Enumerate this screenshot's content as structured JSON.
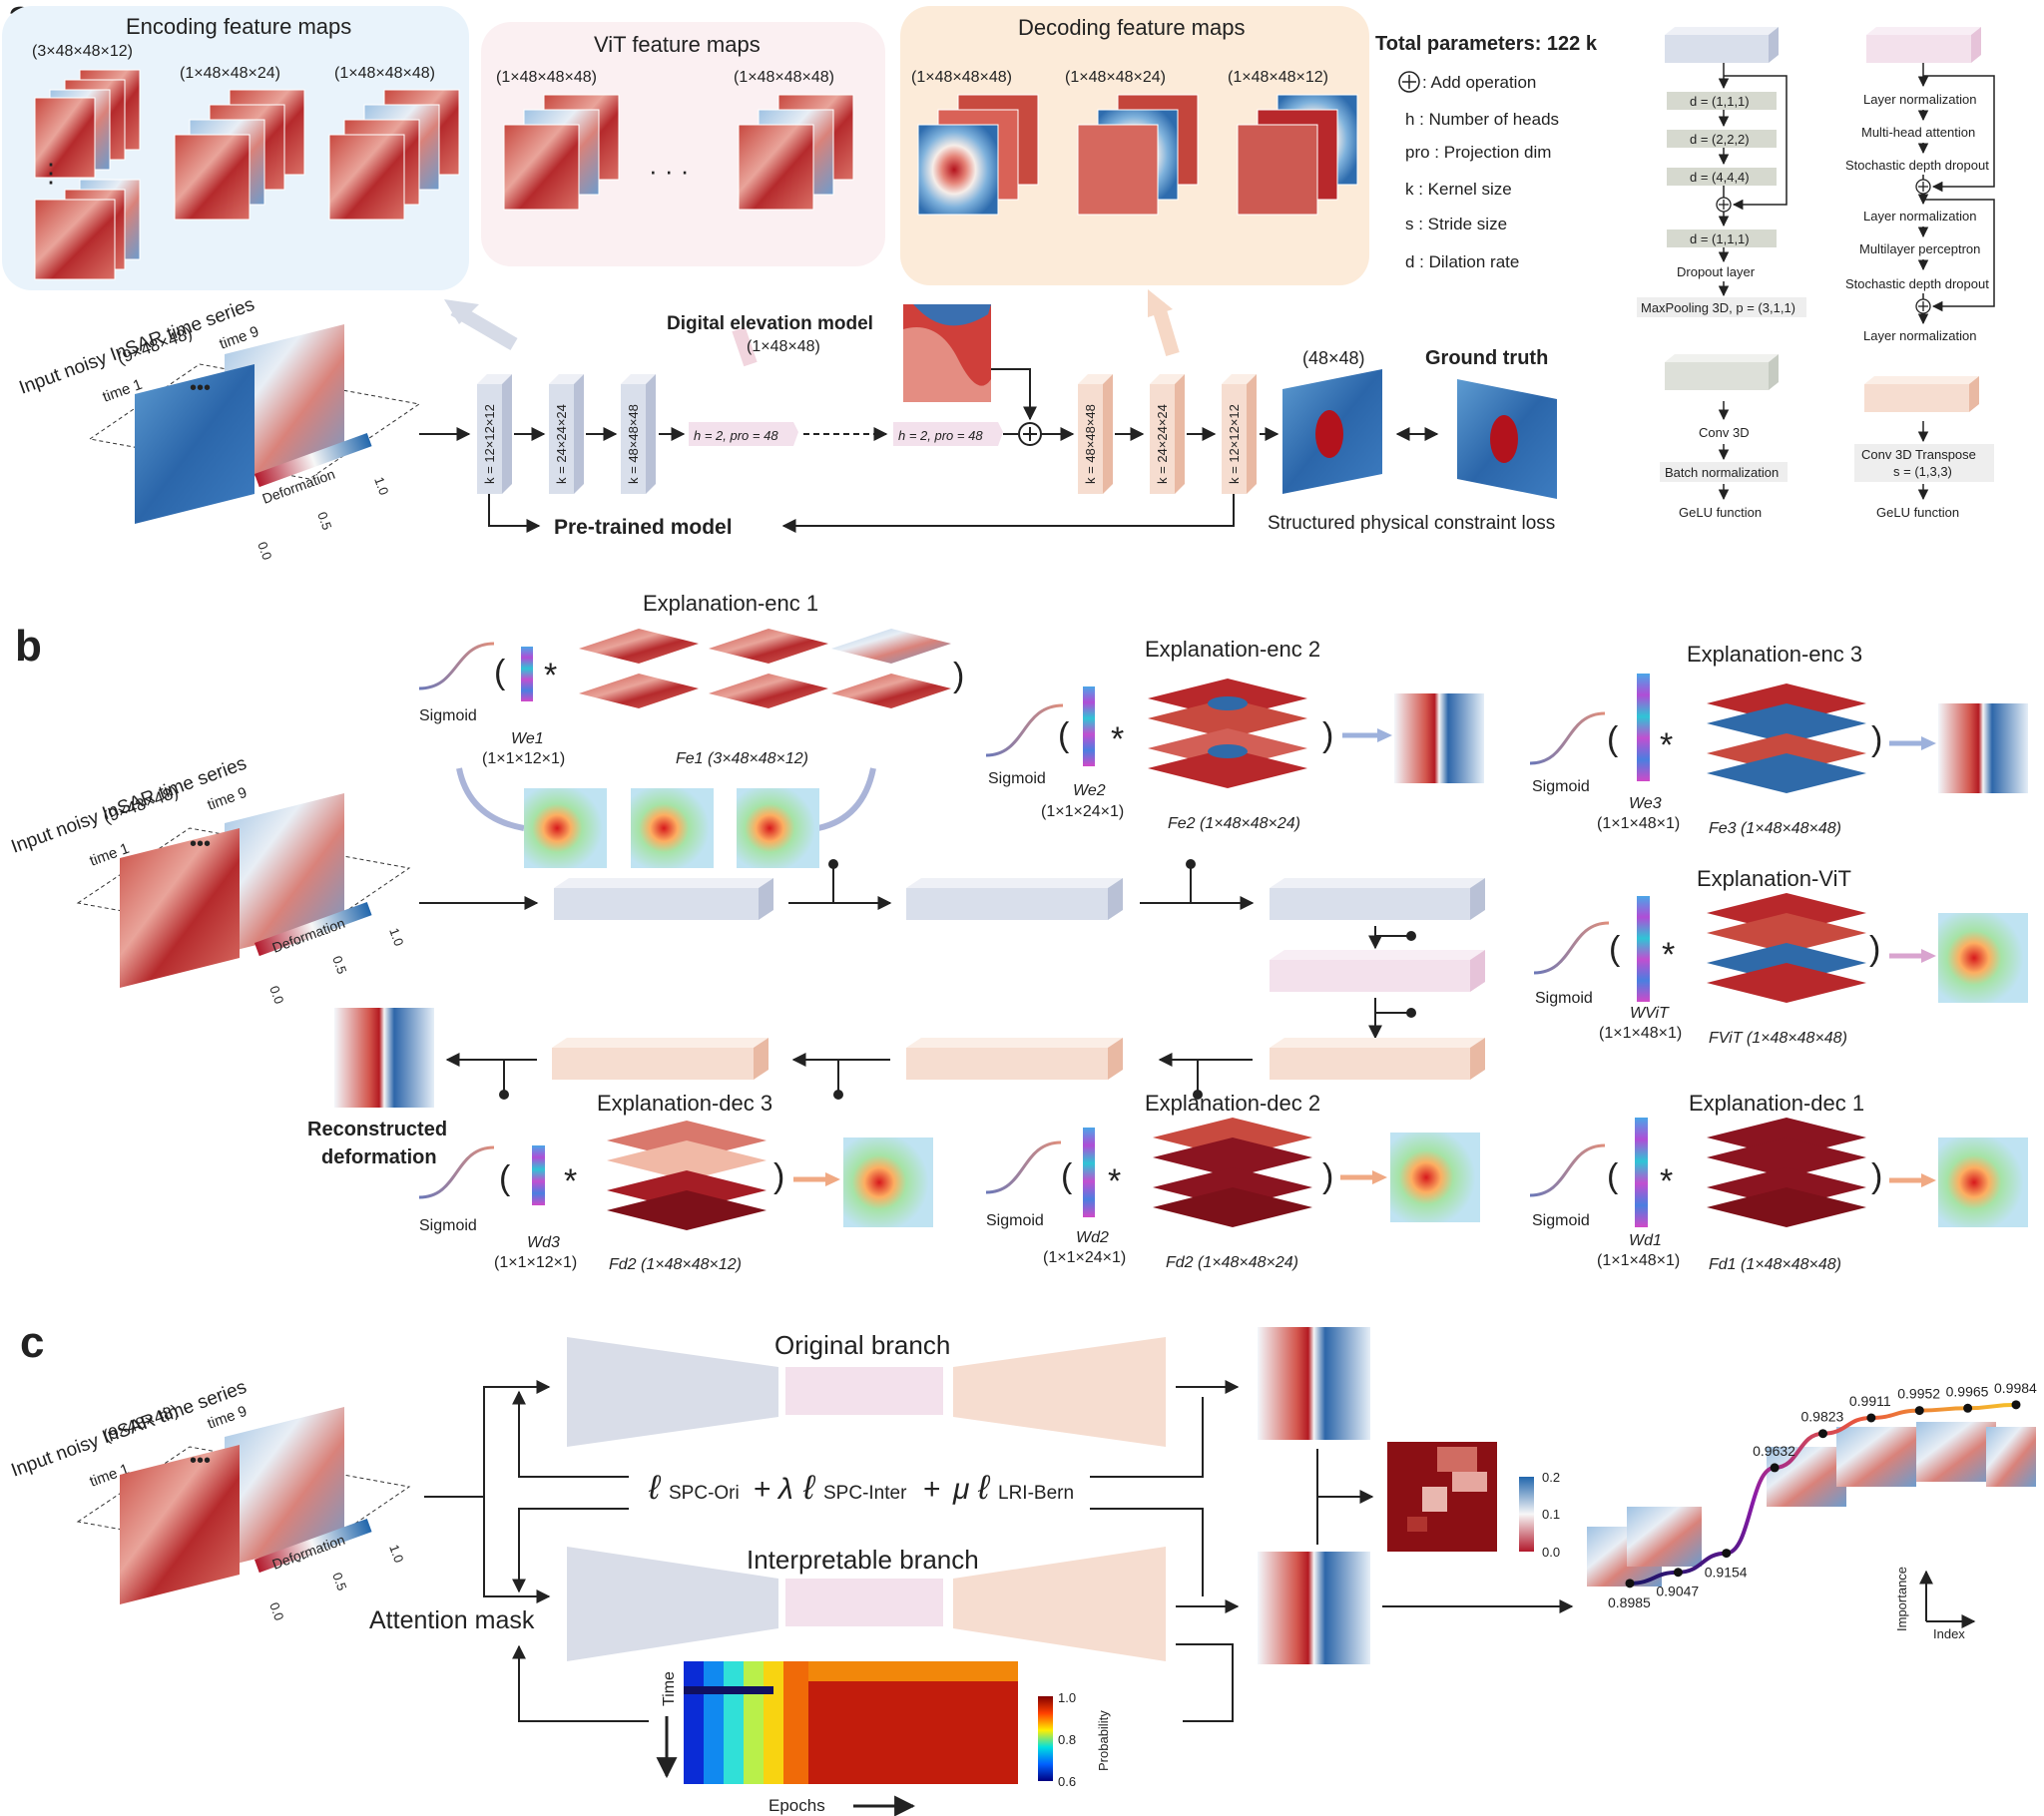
{
  "panel_letters": {
    "a": "a",
    "b": "b",
    "c": "c"
  },
  "colors": {
    "enc_box": "#d9dfeb",
    "vit_box": "#f3e1ec",
    "dec_box": "#f6ddd0",
    "enc_bg": "#eaf3fb",
    "vit_bg": "#fbf1f3",
    "dec_bg": "#fcecdc",
    "red_map": "#b8282b",
    "blue_map": "#2f6aa9",
    "arrow": "#222222"
  },
  "a": {
    "enc_title": "Encoding feature maps",
    "vit_title": "ViT feature maps",
    "dec_title": "Decoding feature maps",
    "enc_dims": [
      "(3×48×48×12)",
      "(1×48×48×24)",
      "(1×48×48×48)"
    ],
    "vit_dims": [
      "(1×48×48×48)",
      "(1×48×48×48)"
    ],
    "dec_dims": [
      "(1×48×48×48)",
      "(1×48×48×24)",
      "(1×48×48×12)"
    ],
    "input_title": "Input noisy InSAR time series",
    "input_dim": "(9×48×48)",
    "time1": "time 1",
    "time9": "time 9",
    "deformation": "Deformation",
    "cbar_ticks": [
      "0.0",
      "0.5",
      "1.0"
    ],
    "dem_title": "Digital elevation model",
    "dem_dim": "(1×48×48)",
    "enc_k": [
      "k = 12×12×12",
      "k = 24×24×24",
      "k = 48×48×48"
    ],
    "dec_k": [
      "k = 48×48×48",
      "k = 24×24×24",
      "k = 12×12×12"
    ],
    "vit_h": [
      "h = 2, pro = 48",
      "h = 2, pro = 48"
    ],
    "out_dim": "(48×48)",
    "ground_truth": "Ground truth",
    "pretrained": "Pre-trained model",
    "spc_loss": "Structured physical constraint loss",
    "legend": {
      "total": "Total parameters: 122 k",
      "add": ": Add operation",
      "h": "h : Number of heads",
      "pro": "pro : Projection dim",
      "k": "k : Kernel size",
      "s": "s : Stride size",
      "d": "d : Dilation rate"
    },
    "block_enc": [
      "d = (1,1,1)",
      "d = (2,2,2)",
      "d = (4,4,4)",
      "d = (1,1,1)",
      "Dropout layer",
      "MaxPooling 3D, p = (3,1,1)"
    ],
    "block_vit": [
      "Layer normalization",
      "Multi-head attention",
      "Stochastic depth dropout",
      "Layer normalization",
      "Multilayer perceptron",
      "Stochastic depth dropout",
      "Layer normalization"
    ],
    "block_conv": [
      "Conv 3D",
      "Batch normalization",
      "GeLU function"
    ],
    "block_tconv": [
      "Conv 3D Transpose",
      "s = (1,3,3)",
      "GeLU function"
    ]
  },
  "b": {
    "input_title": "Input noisy InSAR time series",
    "input_dim": "(9×48×48)",
    "time1": "time 1",
    "time9": "time 9",
    "deformation": "Deformation",
    "cbar_ticks": [
      "0.0",
      "0.5",
      "1.0"
    ],
    "sigmoid": "Sigmoid",
    "enc1": {
      "title": "Explanation-enc 1",
      "w": "We1",
      "wdim": "(1×1×12×1)",
      "f": "Fe1 (3×48×48×12)"
    },
    "enc2": {
      "title": "Explanation-enc 2",
      "w": "We2",
      "wdim": "(1×1×24×1)",
      "f": "Fe2 (1×48×48×24)"
    },
    "enc3": {
      "title": "Explanation-enc 3",
      "w": "We3",
      "wdim": "(1×1×48×1)",
      "f": "Fe3 (1×48×48×48)"
    },
    "vit": {
      "title": "Explanation-ViT",
      "w": "WViT",
      "wdim": "(1×1×48×1)",
      "f": "FViT (1×48×48×48)"
    },
    "dec1": {
      "title": "Explanation-dec 1",
      "w": "Wd1",
      "wdim": "(1×1×48×1)",
      "f": "Fd1 (1×48×48×48)"
    },
    "dec2": {
      "title": "Explanation-dec 2",
      "w": "Wd2",
      "wdim": "(1×1×24×1)",
      "f": "Fd2 (1×48×48×24)"
    },
    "dec3": {
      "title": "Explanation-dec 3",
      "w": "Wd3",
      "wdim": "(1×1×12×1)",
      "f": "Fd2 (1×48×48×12)"
    },
    "recon": [
      "Reconstructed",
      "deformation"
    ]
  },
  "c": {
    "input_title": "Input noisy InSAR time series",
    "input_dim": "(9×48×48)",
    "time1": "time 1",
    "time9": "time 9",
    "deformation": "Deformation",
    "cbar_ticks": [
      "0.0",
      "0.5",
      "1.0"
    ],
    "original": "Original branch",
    "interpretable": "Interpretable branch",
    "loss": {
      "l1": "SPC-Ori",
      "plus1": "+",
      "lambda": "λ",
      "l2": "SPC-Inter",
      "plus2": "+",
      "mu": "μ",
      "l3": "LRI-Bern"
    },
    "attention": "Attention mask",
    "time_axis": "Time",
    "epochs_axis": "Epochs",
    "prob_label": "Probability",
    "prob_ticks": [
      "1.0",
      "0.8",
      "0.6"
    ],
    "diff_ticks": [
      "0.2",
      "0.1",
      "0.0"
    ],
    "importance": "Importance",
    "index": "Index",
    "importance_values": [
      "0.8985",
      "0.9047",
      "0.9154",
      "0.9632",
      "0.9823",
      "0.9911",
      "0.9952",
      "0.9965",
      "0.9984"
    ]
  }
}
